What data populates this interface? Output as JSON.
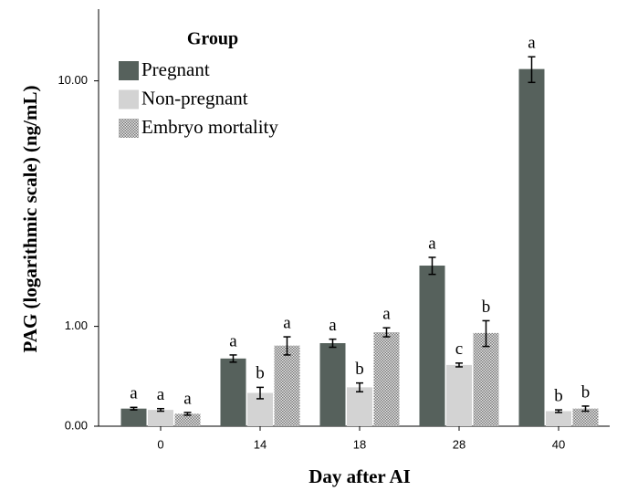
{
  "chart_data": {
    "type": "bar",
    "yscale": "safelog",
    "y_label": "PAG (logarithmic scale) (ng/mL)",
    "x_label": "Day after AI",
    "legend_title": "Group",
    "legend": "upper left",
    "categories": [
      "0",
      "14",
      "18",
      "28",
      "40"
    ],
    "series": [
      {
        "name": "Pregnant",
        "color": "#56615c",
        "pattern": "solid",
        "values": [
          0.13,
          0.6,
          0.78,
          2.05,
          10.94
        ],
        "errors": [
          0.01,
          0.04,
          0.05,
          0.18,
          1.06
        ],
        "letters": [
          "a",
          "a",
          "a",
          "a",
          "a"
        ]
      },
      {
        "name": "Non-pregnant",
        "color": "#d3d3d3",
        "pattern": "solid",
        "values": [
          0.12,
          0.26,
          0.31,
          0.53,
          0.11
        ],
        "errors": [
          0.01,
          0.05,
          0.04,
          0.02,
          0.01
        ],
        "letters": [
          "a",
          "b",
          "b",
          "c",
          "b"
        ]
      },
      {
        "name": "Embryo mortality",
        "color": "#a8a8a8",
        "pattern": "dots",
        "values": [
          0.09,
          0.75,
          0.92,
          0.91,
          0.13
        ],
        "errors": [
          0.01,
          0.11,
          0.06,
          0.17,
          0.02
        ],
        "letters": [
          "a",
          "a",
          "a",
          "b",
          "b"
        ]
      }
    ],
    "ylim": [
      0,
      17.1
    ],
    "yticks": [
      {
        "value": 0,
        "label": "0.00"
      },
      {
        "value": 1,
        "label": "1.00"
      },
      {
        "value": 10,
        "label": "10.00"
      }
    ]
  }
}
